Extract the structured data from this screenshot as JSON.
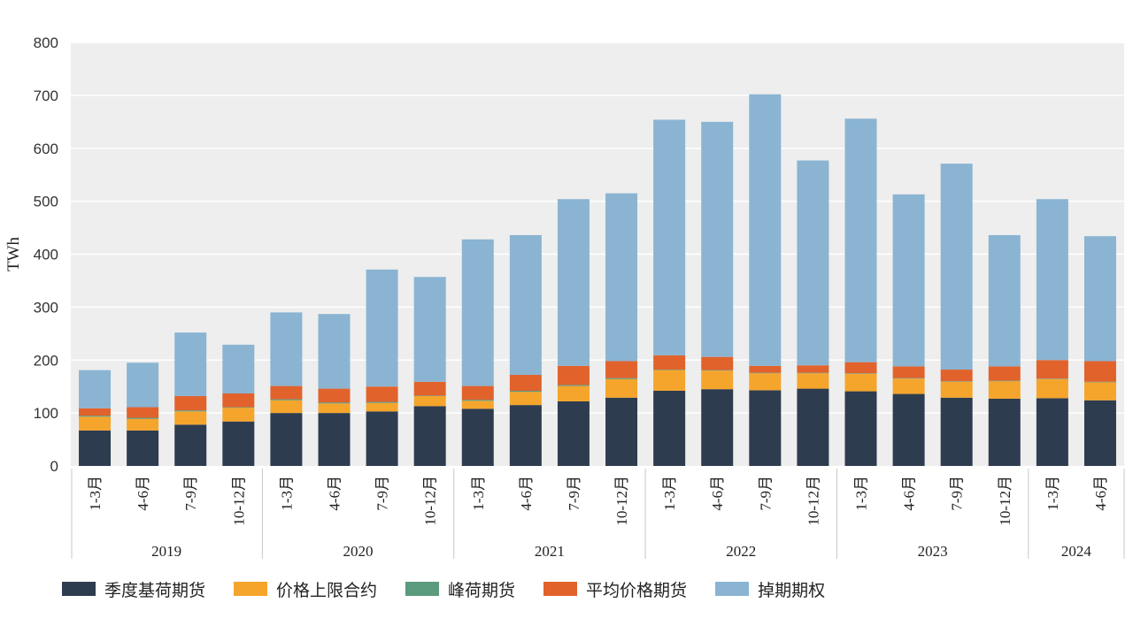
{
  "chart_data": {
    "type": "bar",
    "stacked": true,
    "title": "",
    "xlabel": "",
    "ylabel": "TWh",
    "ylim": [
      0,
      800
    ],
    "yticks": [
      0,
      100,
      200,
      300,
      400,
      500,
      600,
      700,
      800
    ],
    "categories": [
      "1-3月",
      "4-6月",
      "7-9月",
      "10-12月",
      "1-3月",
      "4-6月",
      "7-9月",
      "10-12月",
      "1-3月",
      "4-6月",
      "7-9月",
      "10-12月",
      "1-3月",
      "4-6月",
      "7-9月",
      "10-12月",
      "1-3月",
      "4-6月",
      "7-9月",
      "10-12月",
      "1-3月",
      "4-6月"
    ],
    "groups": [
      {
        "label": "2019",
        "count": 4
      },
      {
        "label": "2020",
        "count": 4
      },
      {
        "label": "2021",
        "count": 4
      },
      {
        "label": "2022",
        "count": 4
      },
      {
        "label": "2023",
        "count": 4
      },
      {
        "label": "2024",
        "count": 2
      }
    ],
    "series": [
      {
        "name": "季度基荷期货",
        "color": "#2e3c50",
        "values": [
          67,
          67,
          78,
          84,
          100,
          100,
          103,
          113,
          108,
          115,
          122,
          129,
          142,
          145,
          143,
          146,
          141,
          136,
          129,
          127,
          128,
          124
        ]
      },
      {
        "name": "价格上限合约",
        "color": "#f5a52b",
        "values": [
          26,
          22,
          25,
          26,
          24,
          18,
          16,
          19,
          15,
          25,
          29,
          35,
          39,
          35,
          32,
          29,
          33,
          29,
          30,
          33,
          36,
          34
        ]
      },
      {
        "name": "峰荷期货",
        "color": "#5a9b7e",
        "values": [
          2,
          2,
          2,
          1,
          2,
          2,
          2,
          1,
          2,
          2,
          2,
          2,
          1,
          1,
          1,
          1,
          1,
          1,
          1,
          1,
          1,
          1
        ]
      },
      {
        "name": "平均价格期货",
        "color": "#e2622c",
        "values": [
          14,
          20,
          27,
          26,
          25,
          26,
          29,
          26,
          26,
          30,
          36,
          32,
          27,
          25,
          13,
          14,
          21,
          22,
          22,
          27,
          35,
          39
        ]
      },
      {
        "name": "掉期期权",
        "color": "#8ab4d2",
        "values": [
          72,
          84,
          120,
          92,
          139,
          141,
          221,
          198,
          277,
          264,
          315,
          317,
          445,
          444,
          513,
          387,
          460,
          325,
          389,
          248,
          304,
          236
        ]
      }
    ],
    "legend_position": "bottom",
    "grid": true
  }
}
